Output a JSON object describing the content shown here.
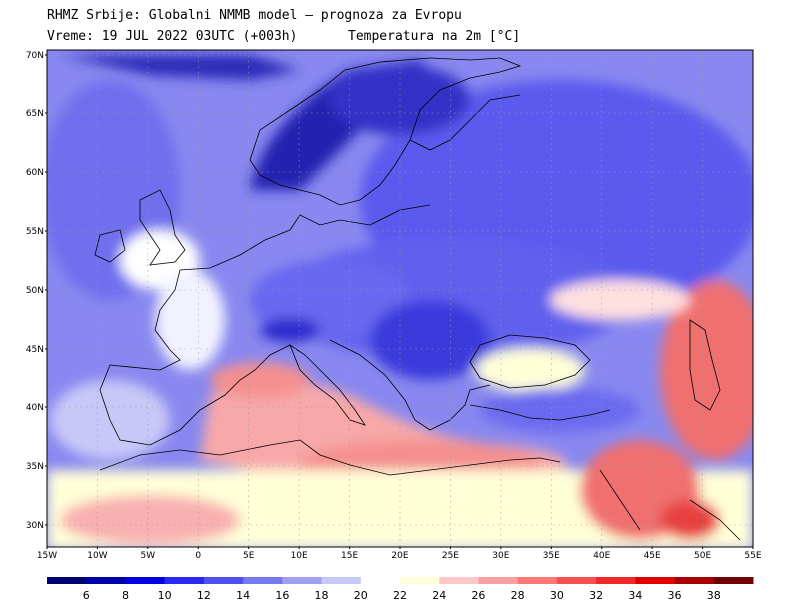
{
  "header": {
    "title": "RHMZ Srbije: Globalni NMMB model — prognoza za Evropu",
    "time": "Vreme: 19 JUL 2022 03UTC (+003h)",
    "variable": "Temperatura na 2m [°C]"
  },
  "lat_labels": [
    "70N",
    "65N",
    "60N",
    "55N",
    "50N",
    "45N",
    "40N",
    "35N",
    "30N"
  ],
  "lon_labels": [
    "15W",
    "10W",
    "5W",
    "0",
    "5E",
    "10E",
    "15E",
    "20E",
    "25E",
    "30E",
    "35E",
    "40E",
    "45E",
    "50E",
    "55E"
  ],
  "colorbar": {
    "colors": [
      "#000070",
      "#0000a8",
      "#0000e0",
      "#2828f0",
      "#5050f0",
      "#7878f0",
      "#a0a0f0",
      "#c8c8f8",
      "#ffffff",
      "#ffffd8",
      "#ffc8c8",
      "#ffa0a0",
      "#ff7878",
      "#f85050",
      "#f02828",
      "#e00000",
      "#a80000",
      "#700000"
    ],
    "labels": [
      "6",
      "8",
      "10",
      "12",
      "14",
      "16",
      "18",
      "20",
      "22",
      "24",
      "26",
      "28",
      "30",
      "32",
      "34",
      "36",
      "38"
    ]
  },
  "map_colors": {
    "sea_cool": "#7878f0",
    "land_cold": "#4040e8",
    "scandinavia_cold": "#1a1aa0",
    "white_band": "#ffffff",
    "cream": "#ffffd8",
    "med_warm": "#f8a0a0",
    "hot": "#f05050",
    "grid": "#999999",
    "coast": "#000000"
  }
}
